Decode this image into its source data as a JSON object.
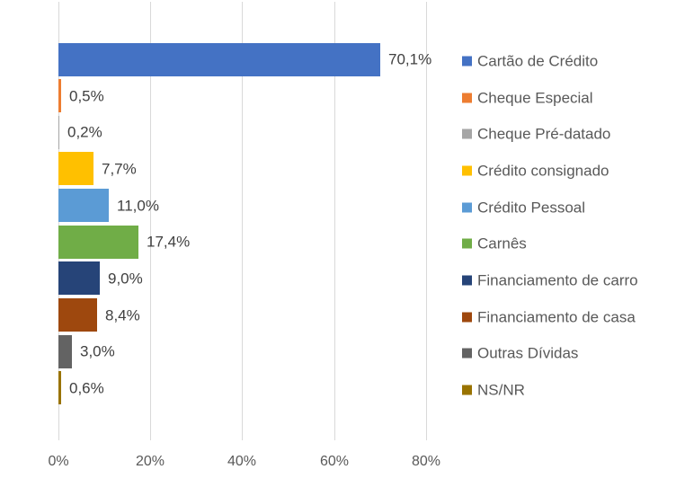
{
  "chart_data": {
    "type": "bar",
    "orientation": "horizontal",
    "title": "",
    "categories": [
      "Cartão de Crédito",
      "Cheque Especial",
      "Cheque Pré-datado",
      "Crédito consignado",
      "Crédito Pessoal",
      "Carnês",
      "Financiamento de carro",
      "Financiamento de casa",
      "Outras Dívidas",
      "NS/NR"
    ],
    "values": [
      70.1,
      0.5,
      0.2,
      7.7,
      11.0,
      17.4,
      9.0,
      8.4,
      3.0,
      0.6
    ],
    "value_labels": [
      "70,1%",
      "0,5%",
      "0,2%",
      "7,7%",
      "11,0%",
      "17,4%",
      "9,0%",
      "8,4%",
      "3,0%",
      "0,6%"
    ],
    "colors": [
      "#4472C4",
      "#ED7D31",
      "#A5A5A5",
      "#FFC000",
      "#5B9BD5",
      "#70AD47",
      "#264478",
      "#9E480E",
      "#636363",
      "#997300"
    ],
    "x_ticks": [
      "0%",
      "20%",
      "40%",
      "60%",
      "80%"
    ],
    "x_tick_values": [
      0,
      20,
      40,
      60,
      80
    ],
    "xlim": [
      0,
      86
    ],
    "grid": true,
    "legend_position": "right",
    "style_colors": {
      "background": "#FFFFFF",
      "grid_color": "#D9D9D9",
      "data_label_color": "#404040",
      "axis_text_color": "#595959",
      "legend_text_color": "#595959"
    }
  }
}
